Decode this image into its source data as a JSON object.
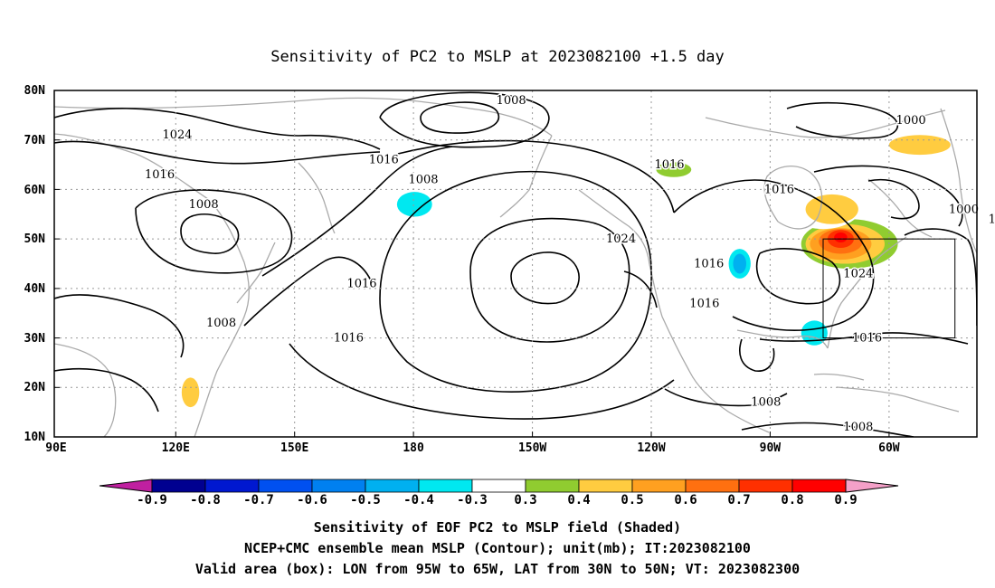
{
  "title": "Sensitivity of PC2 to MSLP at 2023082100 +1.5 day",
  "axes": {
    "y_ticks": [
      "80N",
      "70N",
      "60N",
      "50N",
      "40N",
      "30N",
      "20N",
      "10N"
    ],
    "x_ticks": [
      "90E",
      "120E",
      "150E",
      "180",
      "150W",
      "120W",
      "90W",
      "60W"
    ]
  },
  "map": {
    "lon_range_deg_east": [
      90,
      300
    ],
    "lat_range": [
      10,
      80
    ],
    "grid": "dotted 10 degrees",
    "coastline_color": "#aaaaaa",
    "contour_color": "#000000"
  },
  "valid_box": {
    "lon": [
      "95W",
      "65W"
    ],
    "lat": [
      "30N",
      "50N"
    ]
  },
  "contour_labels": [
    {
      "text": "1008",
      "lon": -166,
      "lat": 78
    },
    {
      "text": "1024",
      "lon": 118,
      "lat": 71
    },
    {
      "text": "1016",
      "lon": 114,
      "lat": 63
    },
    {
      "text": "1016",
      "lon": 165,
      "lat": 66
    },
    {
      "text": "1008",
      "lon": 174,
      "lat": 62
    },
    {
      "text": "1008",
      "lon": 124,
      "lat": 57
    },
    {
      "text": "1016",
      "lon": 160,
      "lat": 41
    },
    {
      "text": "1008",
      "lon": 128,
      "lat": 33
    },
    {
      "text": "1016",
      "lon": 157,
      "lat": 30
    },
    {
      "text": "1016",
      "lon": -130,
      "lat": 65
    },
    {
      "text": "1016",
      "lon": -105,
      "lat": 60
    },
    {
      "text": "1024",
      "lon": -141,
      "lat": 50
    },
    {
      "text": "1016",
      "lon": -121,
      "lat": 45
    },
    {
      "text": "1016",
      "lon": -122,
      "lat": 37
    },
    {
      "text": "1000",
      "lon": -75,
      "lat": 74
    },
    {
      "text": "1000",
      "lon": -63,
      "lat": 56
    },
    {
      "text": "1008",
      "lon": -54,
      "lat": 54
    },
    {
      "text": "1024",
      "lon": -87,
      "lat": 43
    },
    {
      "text": "1016",
      "lon": -85,
      "lat": 30
    },
    {
      "text": "1016",
      "lon": -52,
      "lat": 30
    },
    {
      "text": "1008",
      "lon": -108,
      "lat": 17
    },
    {
      "text": "1008",
      "lon": -87,
      "lat": 12
    }
  ],
  "shaded_blobs": [
    {
      "lon": -91,
      "lat": 49,
      "rx": 14,
      "ry": 6,
      "level": 0.3
    },
    {
      "lon": -89,
      "lat": 49,
      "rx": 11,
      "ry": 5,
      "level": 0.4
    },
    {
      "lon": -90,
      "lat": 49,
      "rx": 9,
      "ry": 4,
      "level": 0.5
    },
    {
      "lon": -91,
      "lat": 49,
      "rx": 7,
      "ry": 3.2,
      "level": 0.6
    },
    {
      "lon": -91,
      "lat": 49.5,
      "rx": 5,
      "ry": 2.5,
      "level": 0.7
    },
    {
      "lon": -91,
      "lat": 50,
      "rx": 3,
      "ry": 1.8,
      "level": 0.8
    },
    {
      "lon": -91,
      "lat": 50.3,
      "rx": 1.5,
      "ry": 1,
      "level": 0.9
    },
    {
      "lon": -95,
      "lat": 57,
      "rx": 9,
      "ry": 5,
      "level": 0.3
    },
    {
      "lon": -93,
      "lat": 56,
      "rx": 6,
      "ry": 3,
      "level": 0.5
    },
    {
      "lon": -76,
      "lat": 67,
      "rx": 13,
      "ry": 5,
      "level": 0.3
    },
    {
      "lon": -73,
      "lat": 69,
      "rx": 7,
      "ry": 2,
      "level": 0.5
    },
    {
      "lon": -131,
      "lat": 63,
      "rx": 7,
      "ry": 3,
      "level": 0.3
    },
    {
      "lon": -129,
      "lat": 64,
      "rx": 4,
      "ry": 1.5,
      "level": 0.4
    },
    {
      "lon": -168,
      "lat": 75,
      "rx": 4,
      "ry": 1.5,
      "level": 0.3
    },
    {
      "lon": -145,
      "lat": 59,
      "rx": 3,
      "ry": 1.5,
      "level": 0.3
    },
    {
      "lon": 126,
      "lat": 30,
      "rx": 2.5,
      "ry": 4,
      "level": 0.3
    },
    {
      "lon": 121,
      "lat": 20,
      "rx": 3.5,
      "ry": 5,
      "level": 0.3
    },
    {
      "lon": 121,
      "lat": 19,
      "rx": 2,
      "ry": 3,
      "level": 0.5
    },
    {
      "lon": 114,
      "lat": 64,
      "rx": 2,
      "ry": 1.5,
      "level": 0.3
    },
    {
      "lon": 116,
      "lat": 53,
      "rx": 2,
      "ry": 1.5,
      "level": 0.3
    },
    {
      "lon": 150,
      "lat": 37,
      "rx": 2,
      "ry": 1,
      "level": 0.3
    },
    {
      "lon": 172,
      "lat": 57,
      "rx": 4,
      "ry": 2.5,
      "level": -0.4
    },
    {
      "lon": -114,
      "lat": 45,
      "rx": 2.5,
      "ry": 3,
      "level": -0.4
    },
    {
      "lon": -114,
      "lat": 45,
      "rx": 1.5,
      "ry": 2,
      "level": -0.5
    },
    {
      "lon": -97,
      "lat": 31,
      "rx": 3,
      "ry": 2.5,
      "level": -0.4
    }
  ],
  "colorbar": {
    "labels": [
      "-0.9",
      "-0.8",
      "-0.7",
      "-0.6",
      "-0.5",
      "-0.4",
      "-0.3",
      "0.3",
      "0.4",
      "0.5",
      "0.6",
      "0.7",
      "0.8",
      "0.9"
    ],
    "low_end_color": "#c020a0",
    "high_end_color": "#f4a0c8",
    "colors": [
      "#000090",
      "#0018d0",
      "#0050f0",
      "#0080f0",
      "#00b0f0",
      "#00e8f0",
      "#ffffff",
      "#90cc30",
      "#ffcc40",
      "#ffa020",
      "#ff7010",
      "#ff3000",
      "#ff0000"
    ]
  },
  "caption": [
    "Sensitivity of EOF PC2 to MSLP field (Shaded)",
    "NCEP+CMC ensemble mean MSLP (Contour); unit(mb); IT:2023082100",
    "Valid area (box): LON from 95W to 65W, LAT from 30N to 50N; VT: 2023082300"
  ]
}
